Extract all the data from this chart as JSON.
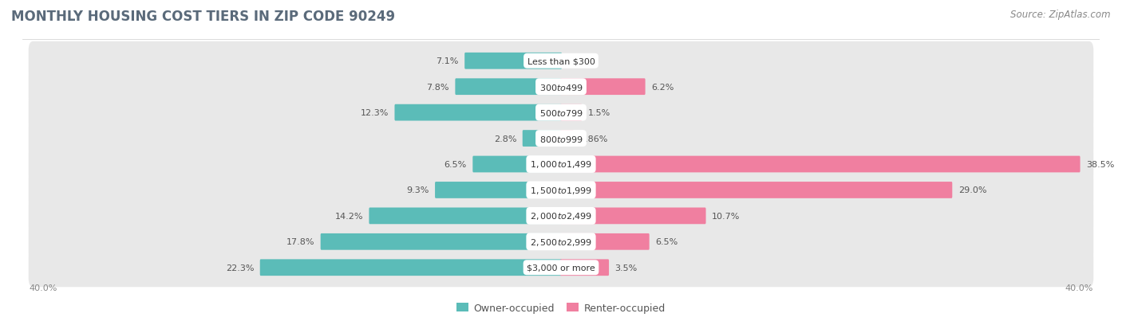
{
  "title": "MONTHLY HOUSING COST TIERS IN ZIP CODE 90249",
  "source": "Source: ZipAtlas.com",
  "categories": [
    "Less than $300",
    "$300 to $499",
    "$500 to $799",
    "$800 to $999",
    "$1,000 to $1,499",
    "$1,500 to $1,999",
    "$2,000 to $2,499",
    "$2,500 to $2,999",
    "$3,000 or more"
  ],
  "owner_values": [
    7.1,
    7.8,
    12.3,
    2.8,
    6.5,
    9.3,
    14.2,
    17.8,
    22.3
  ],
  "renter_values": [
    0.0,
    6.2,
    1.5,
    0.86,
    38.5,
    29.0,
    10.7,
    6.5,
    3.5
  ],
  "owner_color": "#5bbcb8",
  "renter_color": "#f07fa0",
  "owner_label": "Owner-occupied",
  "renter_label": "Renter-occupied",
  "axis_max": 40.0,
  "bg_color": "#ffffff",
  "row_bg_color": "#e8e8e8",
  "title_fontsize": 12,
  "source_fontsize": 8.5,
  "value_fontsize": 8,
  "category_fontsize": 8,
  "legend_fontsize": 9,
  "axis_label_fontsize": 8,
  "title_color": "#5a6a7a",
  "value_color": "#555555",
  "category_color": "#333333",
  "source_color": "#888888"
}
